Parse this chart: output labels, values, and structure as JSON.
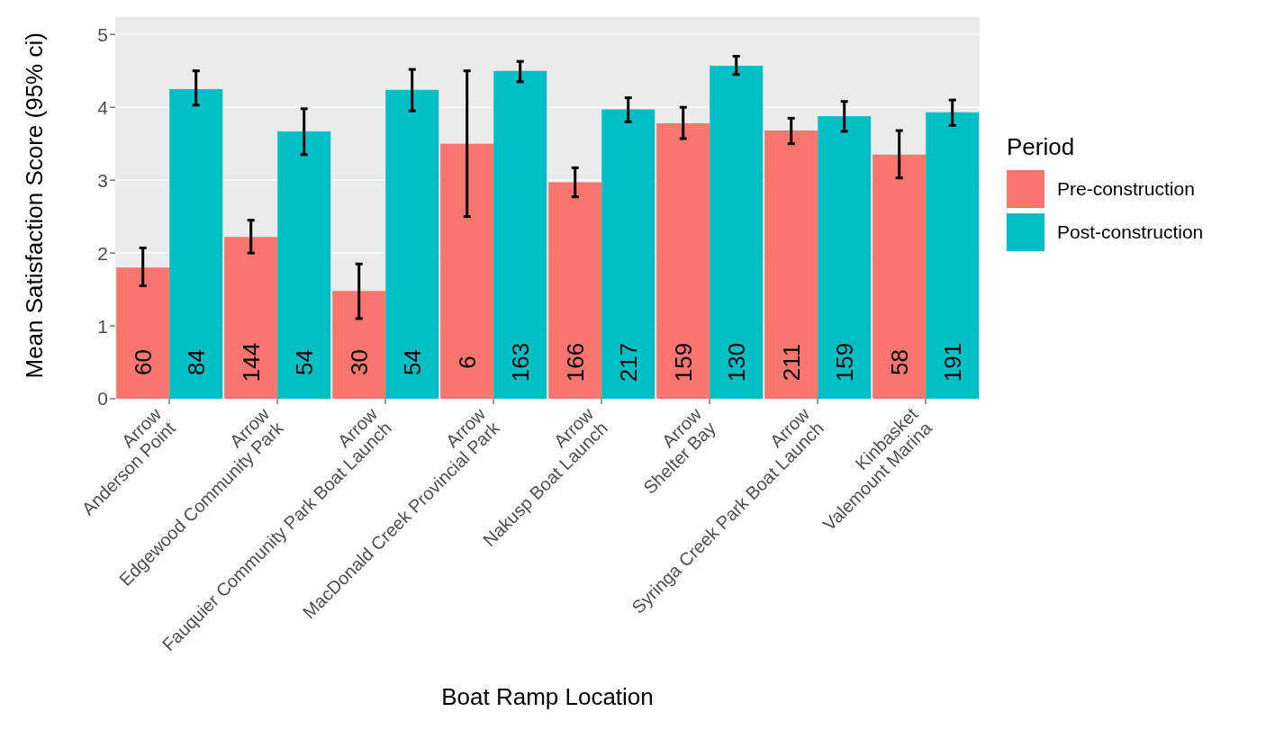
{
  "chart_data": {
    "type": "bar",
    "xlabel": "Boat Ramp Location",
    "ylabel": "Mean Satisfaction Score (95% ci)",
    "legend_title": "Period",
    "categories": [
      "Arrow\nAnderson Point",
      "Arrow\nEdgewood Community Park",
      "Arrow\nFauquier Community Park Boat Launch",
      "Arrow\nMacDonald Creek Provincial Park",
      "Arrow\nNakusp Boat Launch",
      "Arrow\nShelter Bay",
      "Arrow\nSyringa Creek Park Boat Launch",
      "Kinbasket\nValemount Marina"
    ],
    "series": [
      {
        "name": "Pre-construction",
        "color": "#f8766d",
        "values": [
          1.8,
          2.22,
          1.48,
          3.5,
          2.97,
          3.78,
          3.68,
          3.35
        ],
        "errors": [
          [
            1.55,
            2.07
          ],
          [
            2.0,
            2.45
          ],
          [
            1.1,
            1.85
          ],
          [
            2.5,
            4.5
          ],
          [
            2.77,
            3.17
          ],
          [
            3.57,
            4.0
          ],
          [
            3.5,
            3.85
          ],
          [
            3.03,
            3.68
          ]
        ]
      },
      {
        "name": "Post-construction",
        "color": "#00bfc4",
        "values": [
          4.25,
          3.67,
          4.24,
          4.5,
          3.97,
          4.57,
          3.88,
          3.93
        ],
        "errors": [
          [
            4.03,
            4.5
          ],
          [
            3.35,
            3.98
          ],
          [
            3.95,
            4.52
          ],
          [
            4.35,
            4.63
          ],
          [
            3.8,
            4.13
          ],
          [
            4.45,
            4.7
          ],
          [
            3.67,
            4.08
          ],
          [
            3.75,
            4.1
          ]
        ]
      }
    ],
    "annotations": [
      {
        "text": "60",
        "x": "Arrow\nAnderson Point",
        "y": 0.5
      },
      {
        "text": "144",
        "x": "Arrow\nEdgewood Community Park",
        "y": 0.5
      },
      {
        "text": "30",
        "x": "Arrow\nFauquier Community Park Boat Launch",
        "y": 0.5
      },
      {
        "text": "6",
        "x": "Arrow\nMacDonald Creek Provincial Park",
        "y": 0.5
      },
      {
        "text": "166",
        "x": "Arrow\nNakusp Boat Launch",
        "y": 0.5
      },
      {
        "text": "159",
        "x": "Arrow\nShelter Bay",
        "y": 0.5
      },
      {
        "text": "211",
        "x": "Arrow\nSyringa Creek Park Boat Launch",
        "y": 0.5
      },
      {
        "text": "58",
        "x": "Kinbasket\nValemount Marina",
        "y": 0.5
      },
      {
        "text": "84",
        "x": "Arrow\nAnderson Point",
        "y": 0.5
      },
      {
        "text": "54",
        "x": "Arrow\nEdgewood Community Park",
        "y": 0.5
      },
      {
        "text": "54",
        "x": "Arrow\nFauquier Community Park Boat Launch",
        "y": 0.5
      },
      {
        "text": "163",
        "x": "Arrow\nMacDonald Creek Provincial Park",
        "y": 0.5
      },
      {
        "text": "217",
        "x": "Arrow\nNakusp Boat Launch",
        "y": 0.5
      },
      {
        "text": "130",
        "x": "Arrow\nShelter Bay",
        "y": 0.5
      },
      {
        "text": "159",
        "x": "Arrow\nSyringa Creek Park Boat Launch",
        "y": 0.5
      },
      {
        "text": "191",
        "x": "Kinbasket\nValemount Marina",
        "y": 0.5
      }
    ],
    "ylim": [
      0,
      5.25
    ],
    "yticks": [
      0,
      1,
      2,
      3,
      4,
      5
    ],
    "grid": "y",
    "legend": "right"
  }
}
